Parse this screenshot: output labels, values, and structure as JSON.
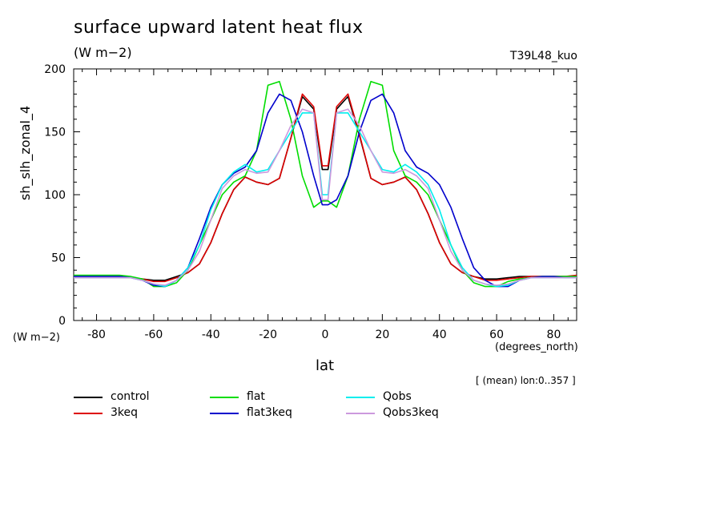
{
  "chart_data": {
    "type": "line",
    "title": "surface upward latent heat flux",
    "units": "(W m−2)",
    "experiment": "T39L48_kuo",
    "ylabel": "sh_slh_zonal_4",
    "yunits": "(W m−2)",
    "xlabel": "lat",
    "xunits": "(degrees_north)",
    "averaging_note": "[ (mean) lon:0..357 ]",
    "xlim": [
      -88,
      88
    ],
    "ylim": [
      0,
      200
    ],
    "xticks": [
      -80,
      -60,
      -40,
      -20,
      0,
      20,
      40,
      60,
      80
    ],
    "yticks": [
      0,
      50,
      100,
      150,
      200
    ],
    "grid": false,
    "legend_position": "bottom",
    "x": [
      -88,
      -84,
      -80,
      -76,
      -72,
      -68,
      -64,
      -60,
      -56,
      -52,
      -48,
      -44,
      -40,
      -36,
      -32,
      -28,
      -24,
      -20,
      -16,
      -12,
      -8,
      -4,
      -1,
      1,
      4,
      8,
      12,
      16,
      20,
      24,
      28,
      32,
      36,
      40,
      44,
      48,
      52,
      56,
      60,
      64,
      68,
      72,
      76,
      80,
      84,
      88
    ],
    "series": [
      {
        "name": "control",
        "color": "#000000",
        "values": [
          35,
          35,
          35,
          35,
          35,
          34,
          33,
          32,
          32,
          35,
          38,
          45,
          62,
          85,
          104,
          114,
          110,
          108,
          113,
          145,
          178,
          168,
          120,
          120,
          168,
          178,
          147,
          113,
          108,
          110,
          114,
          104,
          85,
          62,
          45,
          38,
          35,
          33,
          33,
          34,
          35,
          35,
          35,
          35,
          35,
          35
        ]
      },
      {
        "name": "3keq",
        "color": "#dd0000",
        "values": [
          34,
          34,
          34,
          34,
          34,
          34,
          33,
          31,
          31,
          34,
          38,
          45,
          62,
          85,
          104,
          114,
          110,
          108,
          113,
          145,
          180,
          170,
          123,
          123,
          170,
          180,
          148,
          113,
          108,
          110,
          114,
          104,
          85,
          62,
          45,
          38,
          35,
          32,
          32,
          33,
          34,
          35,
          35,
          35,
          35,
          36
        ]
      },
      {
        "name": "flat",
        "color": "#00dd00",
        "values": [
          36,
          36,
          36,
          36,
          36,
          35,
          33,
          27,
          27,
          30,
          40,
          60,
          80,
          100,
          110,
          115,
          135,
          187,
          190,
          160,
          115,
          90,
          95,
          95,
          90,
          115,
          160,
          190,
          187,
          135,
          115,
          110,
          100,
          80,
          60,
          40,
          30,
          27,
          27,
          31,
          33,
          34,
          35,
          35,
          35,
          35
        ]
      },
      {
        "name": "flat3keq",
        "color": "#0000cc",
        "values": [
          35,
          35,
          35,
          35,
          35,
          34,
          32,
          28,
          27,
          32,
          42,
          65,
          90,
          108,
          117,
          122,
          135,
          165,
          180,
          175,
          150,
          115,
          92,
          92,
          96,
          115,
          150,
          175,
          180,
          165,
          135,
          122,
          117,
          108,
          90,
          65,
          42,
          32,
          27,
          27,
          32,
          34,
          35,
          35,
          34,
          34
        ]
      },
      {
        "name": "Qobs",
        "color": "#00eeee",
        "values": [
          34,
          34,
          34,
          34,
          34,
          34,
          32,
          29,
          27,
          32,
          42,
          60,
          88,
          108,
          118,
          124,
          118,
          120,
          135,
          150,
          165,
          165,
          100,
          100,
          165,
          165,
          150,
          135,
          120,
          118,
          124,
          118,
          108,
          88,
          60,
          42,
          32,
          29,
          27,
          28,
          32,
          34,
          34,
          34,
          34,
          34
        ]
      },
      {
        "name": "Qobs3keq",
        "color": "#cc99dd",
        "values": [
          34,
          34,
          34,
          34,
          34,
          34,
          32,
          29,
          28,
          32,
          40,
          55,
          80,
          105,
          115,
          120,
          117,
          118,
          135,
          155,
          168,
          165,
          96,
          96,
          165,
          168,
          155,
          135,
          118,
          117,
          120,
          115,
          105,
          80,
          55,
          40,
          32,
          29,
          28,
          29,
          32,
          34,
          34,
          34,
          34,
          34
        ]
      }
    ]
  }
}
